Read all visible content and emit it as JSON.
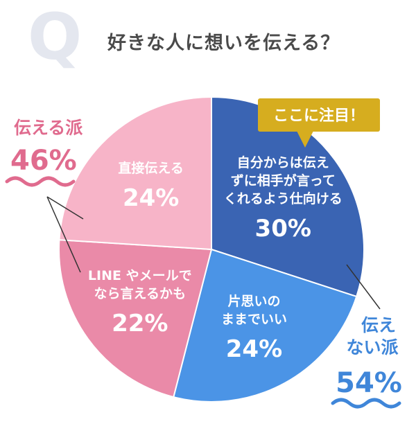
{
  "header": {
    "q_letter": "Q",
    "question": "好きな人に想いを伝える？"
  },
  "colors": {
    "blue_dark": "#3a64b3",
    "blue_mid": "#4b94e6",
    "pink_mid": "#ea8aa8",
    "pink_light": "#f7b4c8",
    "callout": "#d6ad1f",
    "group_left": "#e06b8e",
    "group_right": "#3f86d9"
  },
  "callout": {
    "text": "ここに注目！"
  },
  "groups": {
    "left": {
      "label": "伝える派",
      "percent": "46%"
    },
    "right": {
      "label_line1": "伝え",
      "label_line2": "ない派",
      "percent": "54%"
    }
  },
  "chart_data": {
    "type": "pie",
    "slices": [
      {
        "lines": [
          "自分からは伝え",
          "ずに相手が言って",
          "くれるよう仕向ける"
        ],
        "value": 30,
        "label": "30%",
        "color": "#3a64b3"
      },
      {
        "lines": [
          "片思いの",
          "ままでいい"
        ],
        "value": 24,
        "label": "24%",
        "color": "#4b94e6"
      },
      {
        "lines": [
          "LINE やメールで",
          "なら言えるかも"
        ],
        "value": 22,
        "label": "22%",
        "color": "#ea8aa8"
      },
      {
        "lines": [
          "直接伝える"
        ],
        "value": 24,
        "label": "24%",
        "color": "#f7b4c8"
      }
    ]
  }
}
